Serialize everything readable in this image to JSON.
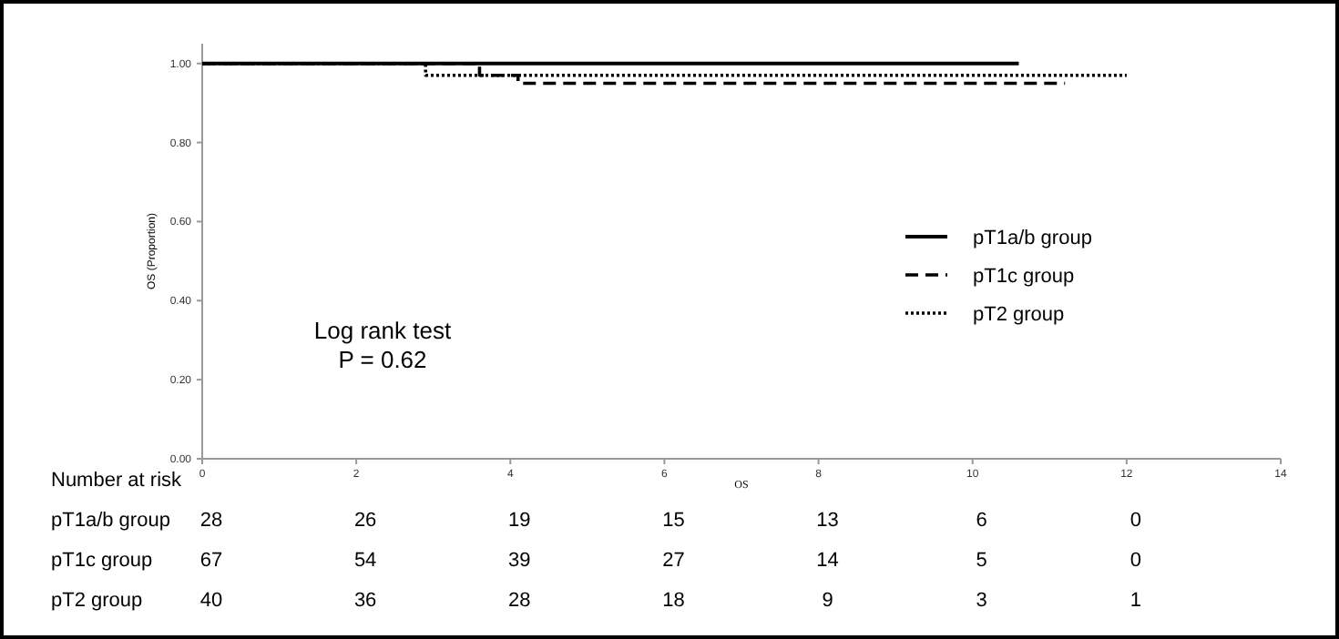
{
  "chart_data": {
    "type": "step",
    "xlabel": "OS",
    "ylabel": "OS (Proportion)",
    "xlim": [
      0,
      14
    ],
    "xticks": [
      0,
      2,
      4,
      6,
      8,
      10,
      12,
      14
    ],
    "ylim": [
      0,
      1.05
    ],
    "yticks": [
      {
        "value": 0,
        "label": "0.00"
      },
      {
        "value": 0.2,
        "label": "0.20"
      },
      {
        "value": 0.4,
        "label": "0.40"
      },
      {
        "value": 0.6,
        "label": "0.60"
      },
      {
        "value": 0.8,
        "label": "0.80"
      },
      {
        "value": 1,
        "label": "1.00"
      }
    ],
    "grid": false,
    "legend": "right",
    "marker": "none",
    "series": [
      {
        "name": "pT1a/b group",
        "color": "#000000",
        "line_style": "solid",
        "x": [
          0,
          10.6
        ],
        "values": [
          1,
          1
        ]
      },
      {
        "name": "pT1c group",
        "color": "#000000",
        "line_style": "dashed",
        "x": [
          0,
          3.6,
          4.1,
          11.2
        ],
        "values": [
          1,
          0.97,
          0.95,
          0.95
        ]
      },
      {
        "name": "pT2 group",
        "color": "#000000",
        "line_style": "dotted",
        "x": [
          0,
          2.9,
          12
        ],
        "values": [
          1,
          0.97,
          0.97
        ]
      }
    ],
    "annotations": [
      "Log rank test",
      "P = 0.62",
      "Number at risk",
      "pT1a/b group",
      "28",
      "26",
      "19",
      "15",
      "13",
      "6",
      "0",
      "pT1c group",
      "67",
      "54",
      "39",
      "27",
      "14",
      "5",
      "0",
      "pT2 group",
      "40",
      "36",
      "28",
      "18",
      "9",
      "3",
      "1"
    ]
  }
}
